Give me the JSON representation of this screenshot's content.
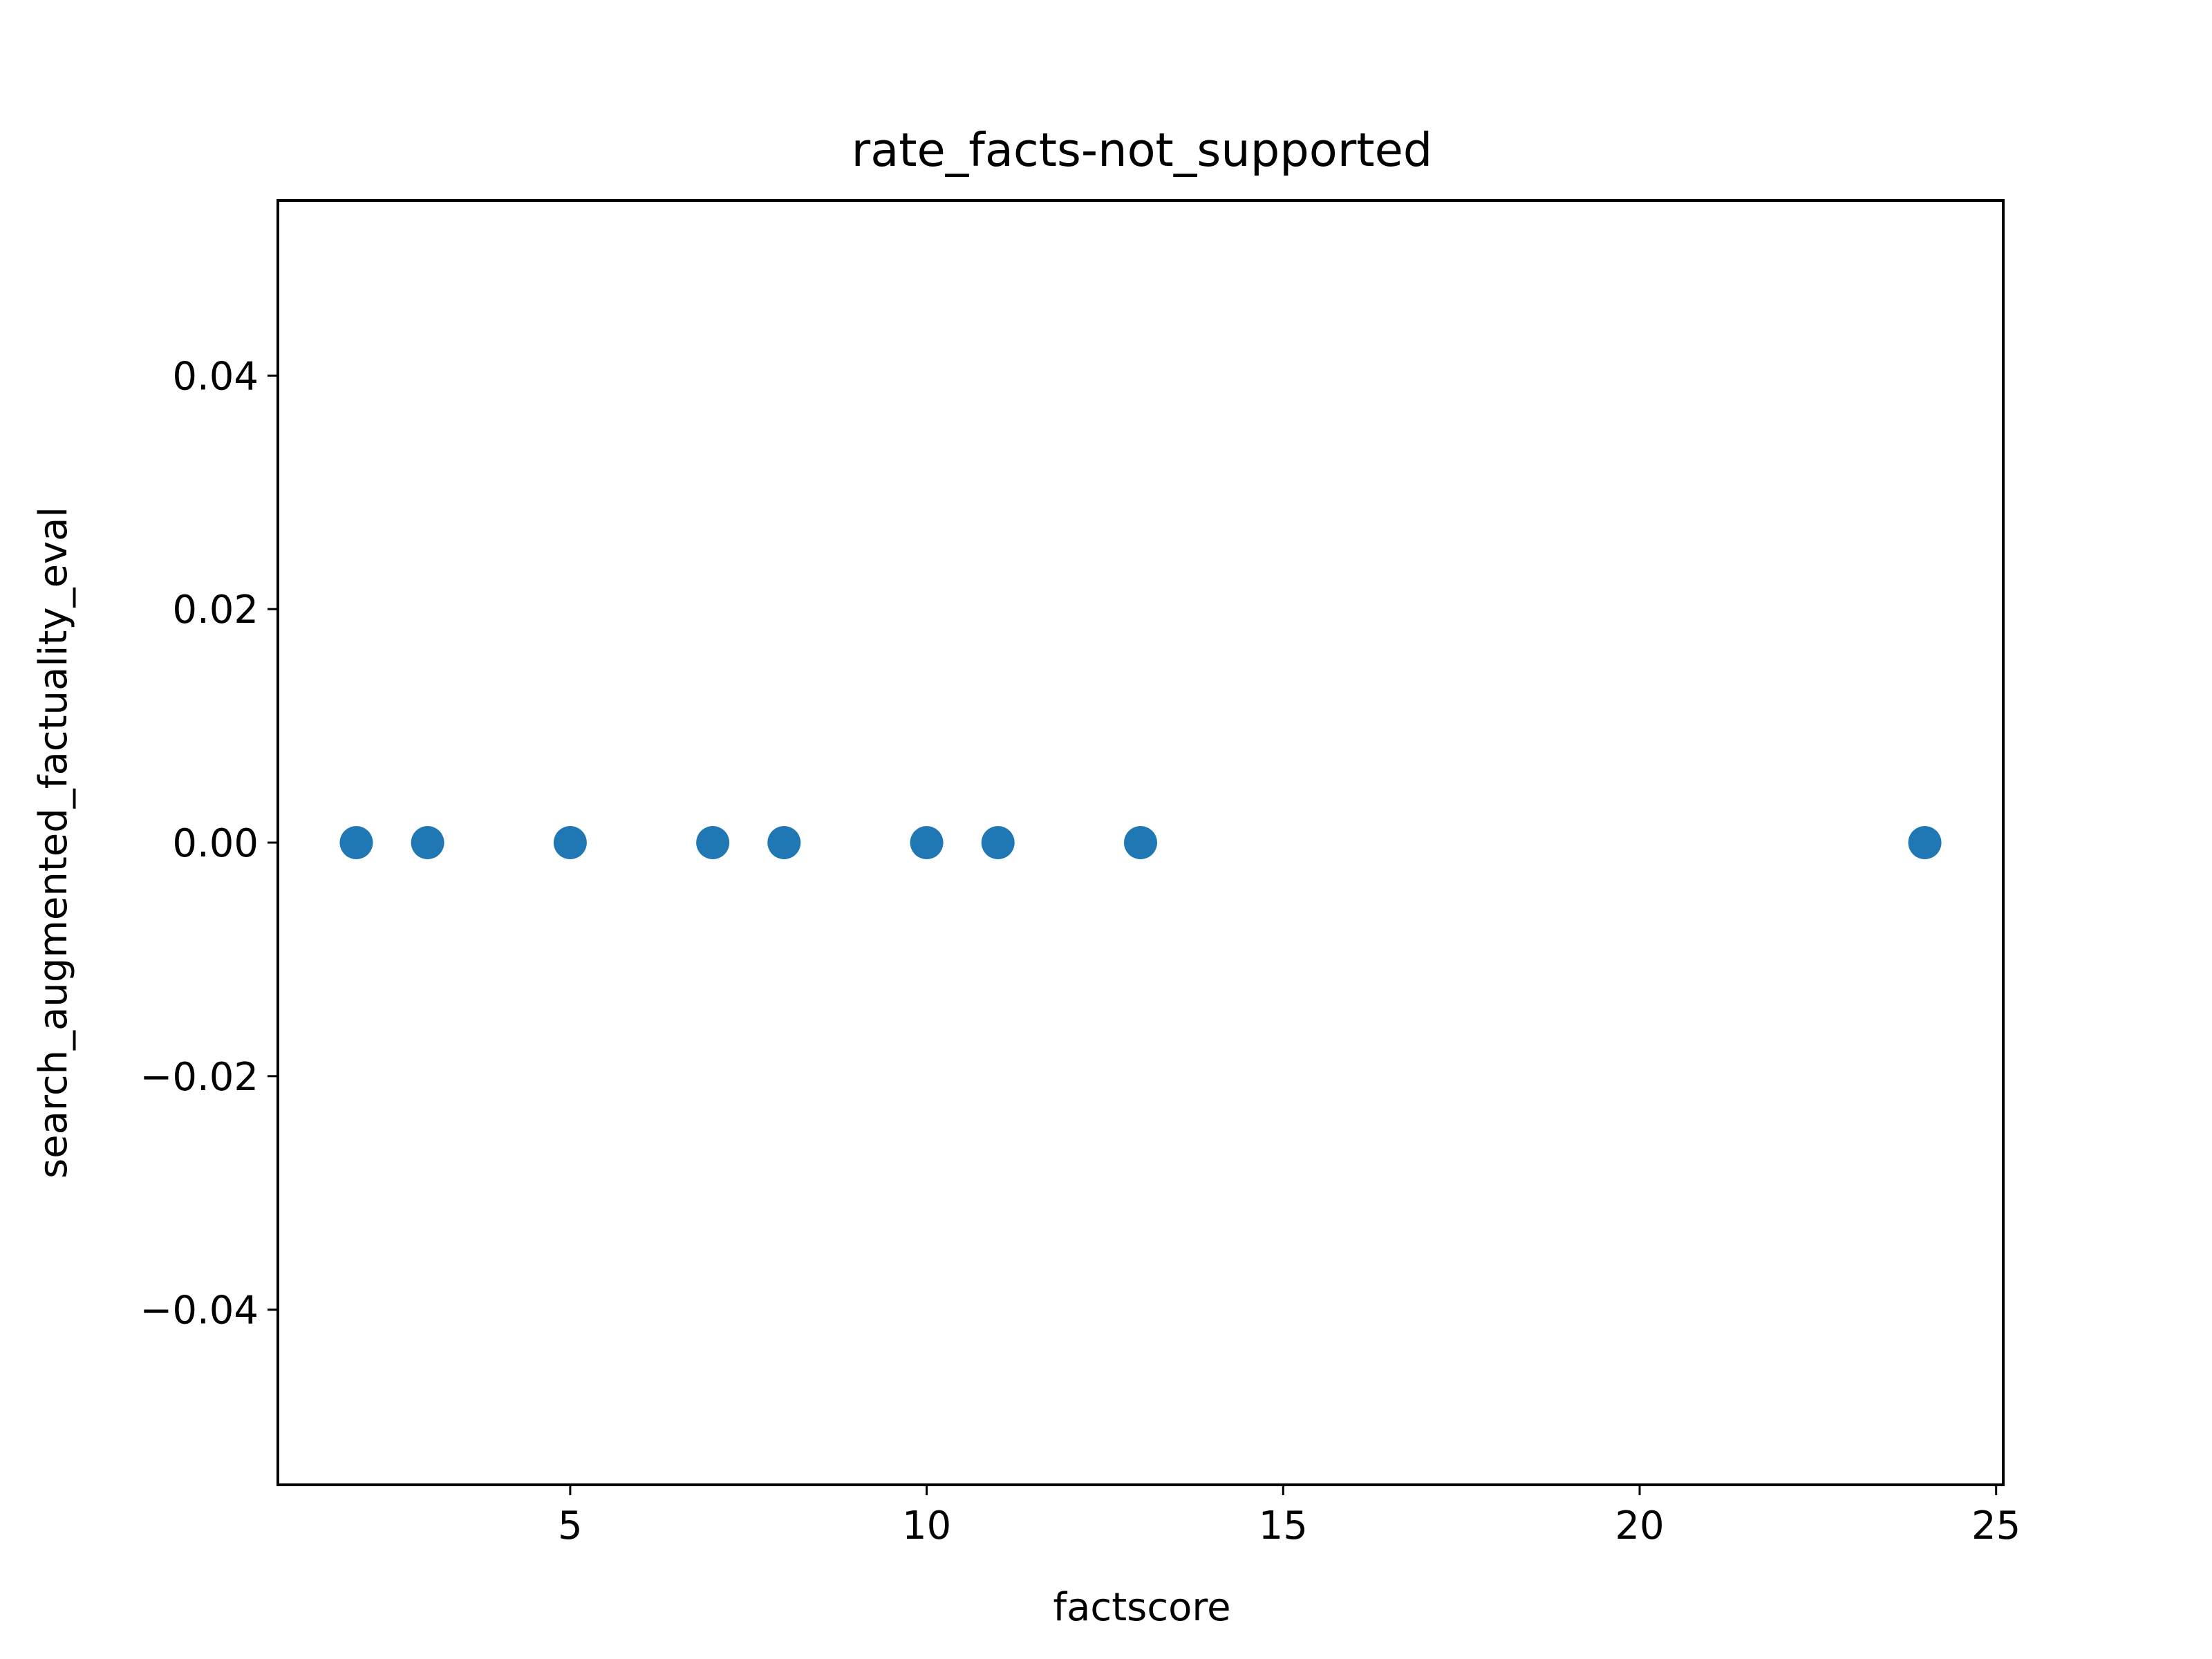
{
  "chart_data": {
    "type": "scatter",
    "title": "rate_facts-not_supported",
    "xlabel": "factscore",
    "ylabel": "search_augmented_factuality_eval",
    "xlim": [
      0.9,
      25.1
    ],
    "ylim": [
      -0.055,
      0.055
    ],
    "grid": false,
    "x_ticks": [
      5,
      10,
      15,
      20,
      25
    ],
    "x_tick_labels": [
      "5",
      "10",
      "15",
      "20",
      "25"
    ],
    "y_ticks": [
      0.04,
      0.02,
      0.0,
      -0.02,
      -0.04
    ],
    "y_tick_labels": [
      "0.04",
      "0.02",
      "0.00",
      "−0.02",
      "−0.04"
    ],
    "series": [
      {
        "color": "#1f77b4",
        "x": [
          2,
          3,
          5,
          7,
          8,
          10,
          11,
          13,
          24
        ],
        "y": [
          0,
          0,
          0,
          0,
          0,
          0,
          0,
          0,
          0
        ]
      }
    ]
  }
}
